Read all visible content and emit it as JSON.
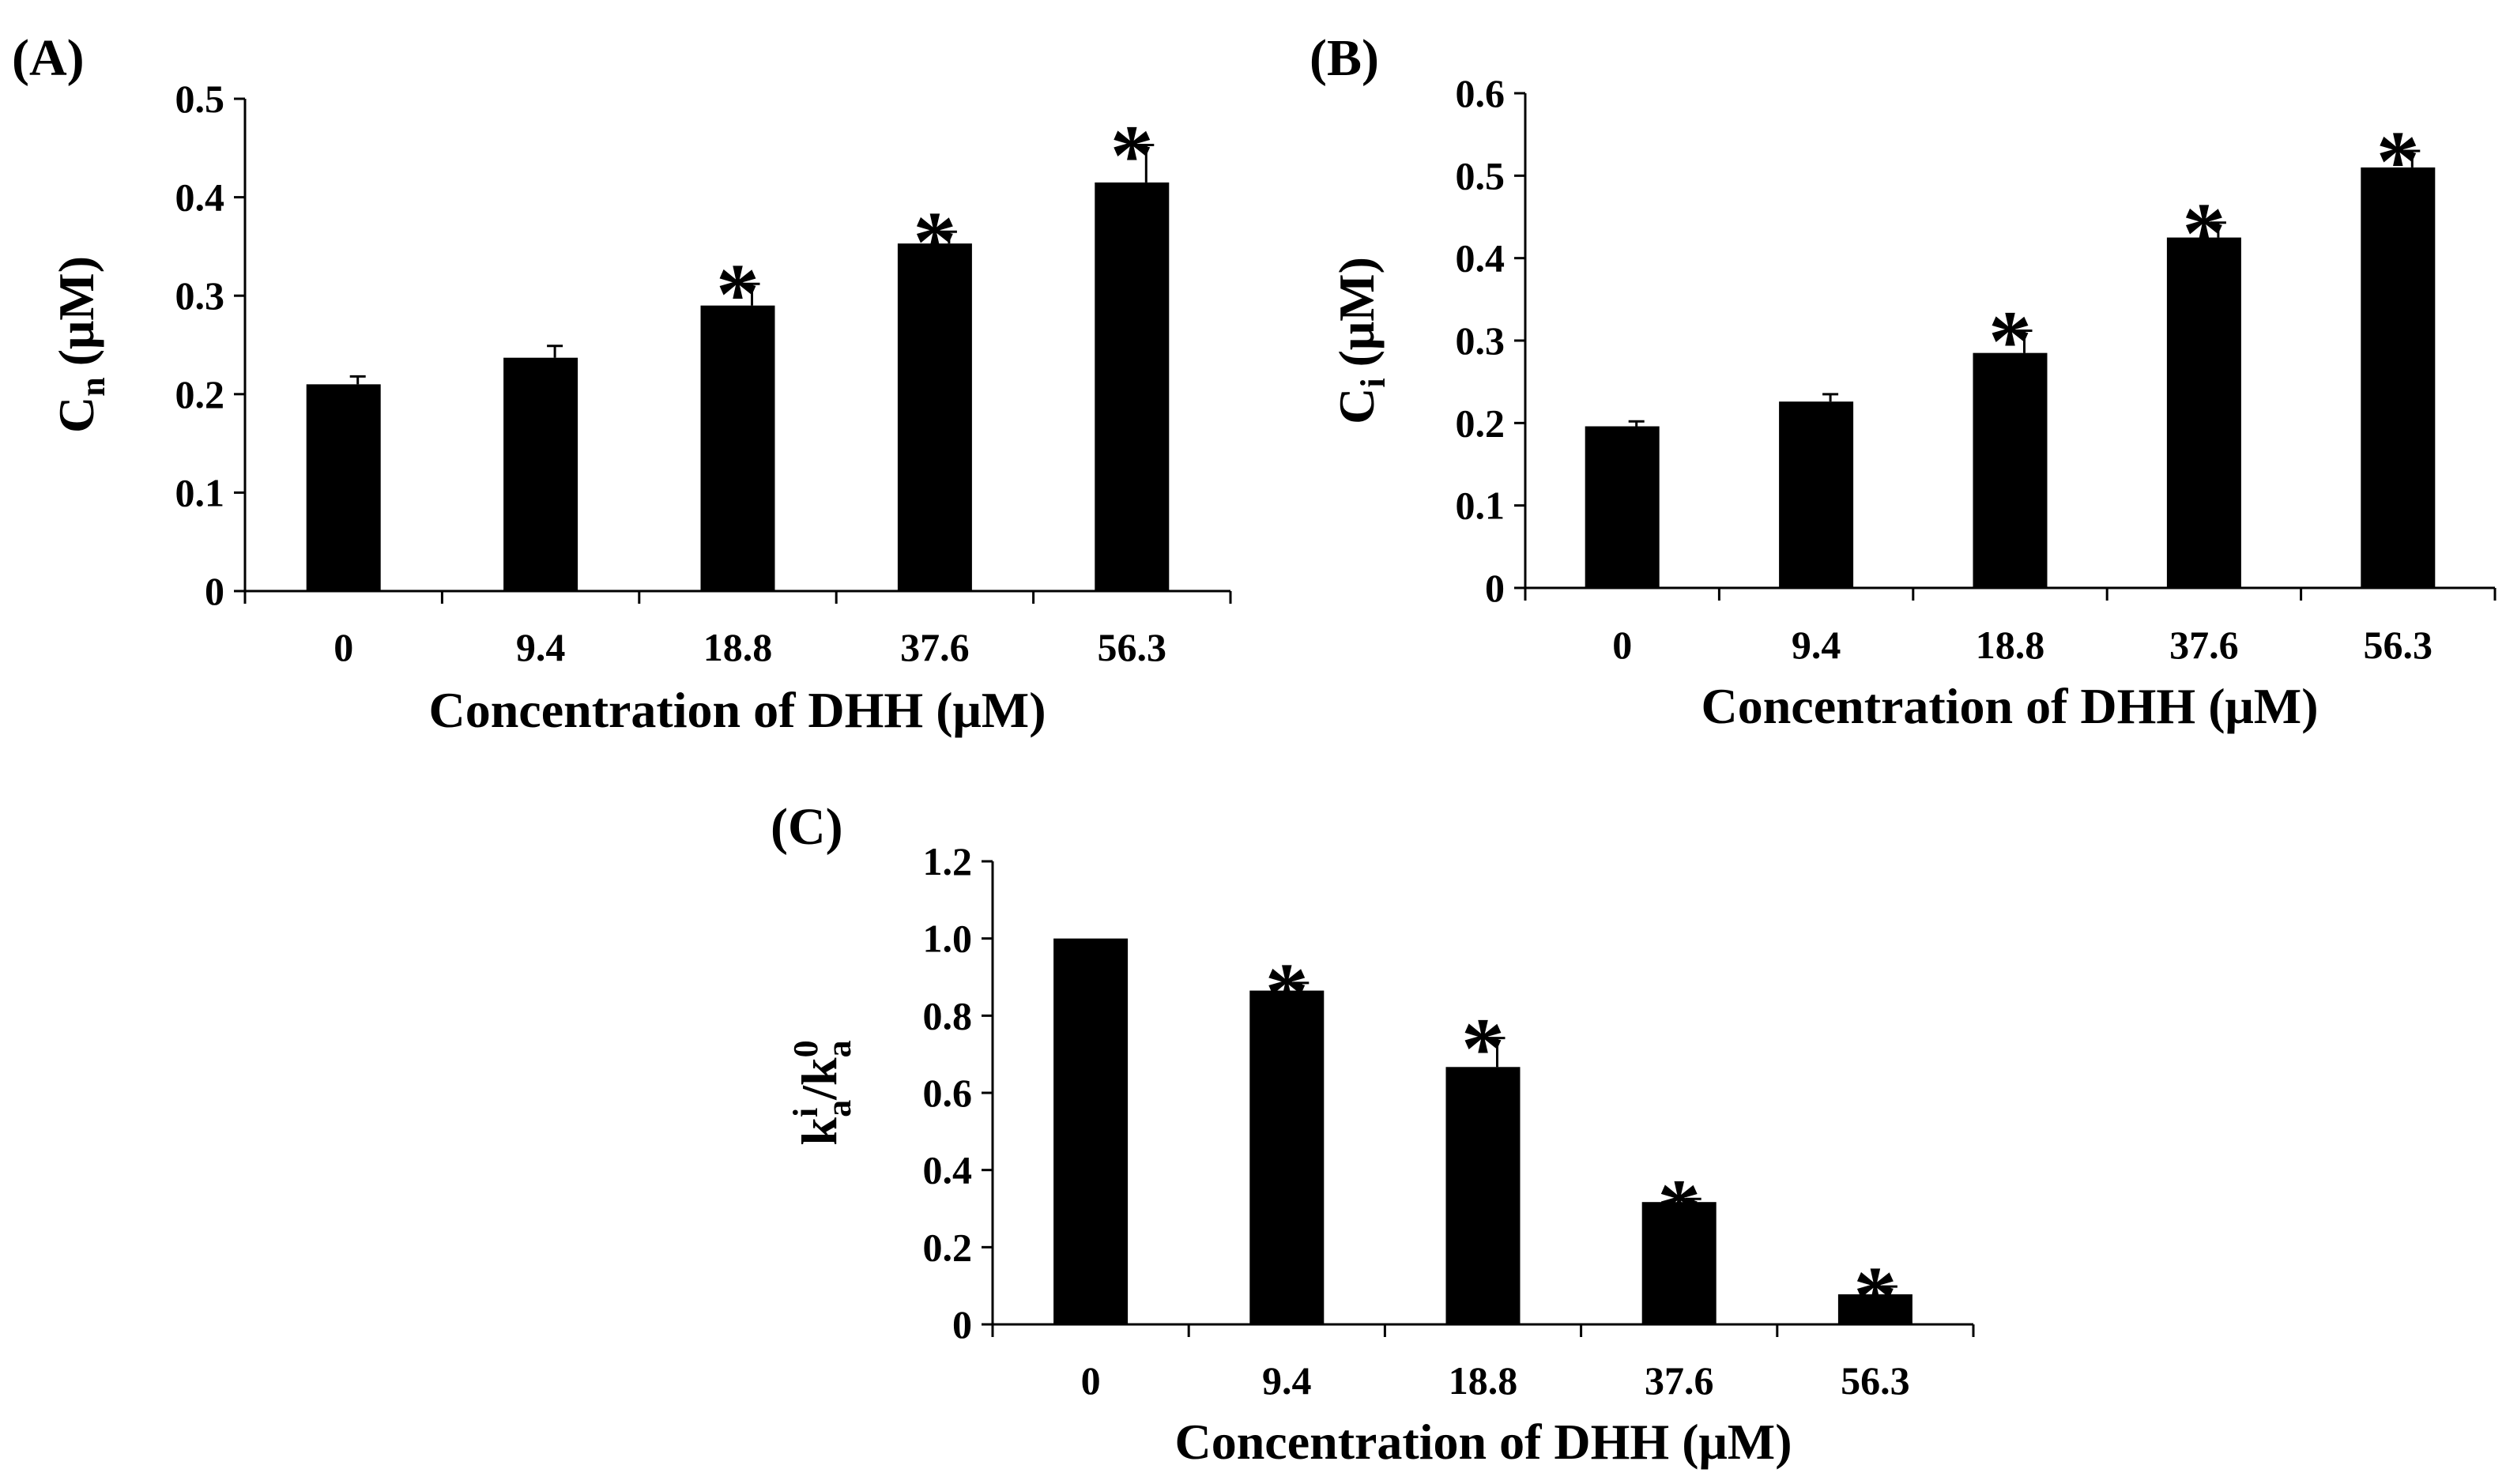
{
  "chart_data": [
    {
      "type": "bar",
      "panel_label": "(A)",
      "categories": [
        "0",
        "9.4",
        "18.8",
        "37.6",
        "56.3"
      ],
      "values": [
        0.21,
        0.237,
        0.29,
        0.353,
        0.415
      ],
      "errors": [
        0.008,
        0.012,
        0.022,
        0.012,
        0.038
      ],
      "significant": [
        false,
        false,
        true,
        true,
        true
      ],
      "marker": "*",
      "ylim": [
        0,
        0.5
      ],
      "yticks": [
        0,
        0.1,
        0.2,
        0.3,
        0.4,
        0.5
      ],
      "ytick_labels": [
        "0",
        "0.1",
        "0.2",
        "0.3",
        "0.4",
        "0.5"
      ],
      "ylabel": {
        "main": "C",
        "sub": "n",
        "unit": "(μM)"
      },
      "xlabel": "Concentration  of DHH (μM)"
    },
    {
      "type": "bar",
      "panel_label": "(B)",
      "categories": [
        "0",
        "9.4",
        "18.8",
        "37.6",
        "56.3"
      ],
      "values": [
        0.196,
        0.226,
        0.285,
        0.425,
        0.51
      ],
      "errors": [
        0.006,
        0.009,
        0.027,
        0.018,
        0.02
      ],
      "significant": [
        false,
        false,
        true,
        true,
        true
      ],
      "marker": "*",
      "ylim": [
        0,
        0.6
      ],
      "yticks": [
        0,
        0.1,
        0.2,
        0.3,
        0.4,
        0.5,
        0.6
      ],
      "ytick_labels": [
        "0",
        "0.1",
        "0.2",
        "0.3",
        "0.4",
        "0.5",
        "0.6"
      ],
      "ylabel": {
        "main": "C",
        "sub": "i",
        "unit": "(μM)"
      },
      "xlabel": "Concentration  of DHH (μM)"
    },
    {
      "type": "bar",
      "panel_label": "(C)",
      "categories": [
        "0",
        "9.4",
        "18.8",
        "37.6",
        "56.3"
      ],
      "values": [
        1.0,
        0.865,
        0.667,
        0.317,
        0.078
      ],
      "errors": [
        0.0,
        0.02,
        0.075,
        0.008,
        0.02
      ],
      "significant": [
        false,
        true,
        true,
        true,
        true
      ],
      "marker": "*",
      "ylim": [
        0,
        1.2
      ],
      "yticks": [
        0,
        0.2,
        0.4,
        0.6,
        0.8,
        1.0,
        1.2
      ],
      "ytick_labels": [
        "0",
        "0.2",
        "0.4",
        "0.6",
        "0.8",
        "1.0",
        "1.2"
      ],
      "ylabel": {
        "k": "k",
        "sup1": "i",
        "sub1": "a",
        "slash": "/k",
        "sup2": "0",
        "sub2": "a"
      },
      "xlabel": "Concentration  of DHH (μM)"
    }
  ]
}
